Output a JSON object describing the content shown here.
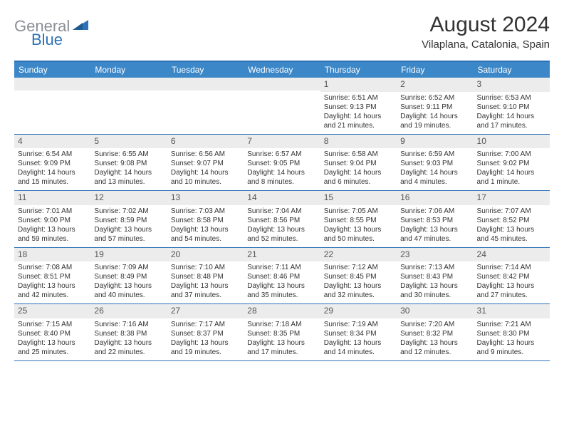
{
  "logo": {
    "part1": "General",
    "part2": "Blue"
  },
  "title": "August 2024",
  "subtitle": "Vilaplana, Catalonia, Spain",
  "colors": {
    "header_bar": "#3c87c7",
    "rule": "#2d72b8",
    "daynum_bg": "#ececec",
    "logo_gray": "#8a8f94",
    "logo_blue": "#2d72b8",
    "text": "#333333",
    "bg": "#ffffff"
  },
  "dow": [
    "Sunday",
    "Monday",
    "Tuesday",
    "Wednesday",
    "Thursday",
    "Friday",
    "Saturday"
  ],
  "weeks": [
    [
      {
        "n": "",
        "sr": "",
        "ss": "",
        "dl": ""
      },
      {
        "n": "",
        "sr": "",
        "ss": "",
        "dl": ""
      },
      {
        "n": "",
        "sr": "",
        "ss": "",
        "dl": ""
      },
      {
        "n": "",
        "sr": "",
        "ss": "",
        "dl": ""
      },
      {
        "n": "1",
        "sr": "Sunrise: 6:51 AM",
        "ss": "Sunset: 9:13 PM",
        "dl": "Daylight: 14 hours and 21 minutes."
      },
      {
        "n": "2",
        "sr": "Sunrise: 6:52 AM",
        "ss": "Sunset: 9:11 PM",
        "dl": "Daylight: 14 hours and 19 minutes."
      },
      {
        "n": "3",
        "sr": "Sunrise: 6:53 AM",
        "ss": "Sunset: 9:10 PM",
        "dl": "Daylight: 14 hours and 17 minutes."
      }
    ],
    [
      {
        "n": "4",
        "sr": "Sunrise: 6:54 AM",
        "ss": "Sunset: 9:09 PM",
        "dl": "Daylight: 14 hours and 15 minutes."
      },
      {
        "n": "5",
        "sr": "Sunrise: 6:55 AM",
        "ss": "Sunset: 9:08 PM",
        "dl": "Daylight: 14 hours and 13 minutes."
      },
      {
        "n": "6",
        "sr": "Sunrise: 6:56 AM",
        "ss": "Sunset: 9:07 PM",
        "dl": "Daylight: 14 hours and 10 minutes."
      },
      {
        "n": "7",
        "sr": "Sunrise: 6:57 AM",
        "ss": "Sunset: 9:05 PM",
        "dl": "Daylight: 14 hours and 8 minutes."
      },
      {
        "n": "8",
        "sr": "Sunrise: 6:58 AM",
        "ss": "Sunset: 9:04 PM",
        "dl": "Daylight: 14 hours and 6 minutes."
      },
      {
        "n": "9",
        "sr": "Sunrise: 6:59 AM",
        "ss": "Sunset: 9:03 PM",
        "dl": "Daylight: 14 hours and 4 minutes."
      },
      {
        "n": "10",
        "sr": "Sunrise: 7:00 AM",
        "ss": "Sunset: 9:02 PM",
        "dl": "Daylight: 14 hours and 1 minute."
      }
    ],
    [
      {
        "n": "11",
        "sr": "Sunrise: 7:01 AM",
        "ss": "Sunset: 9:00 PM",
        "dl": "Daylight: 13 hours and 59 minutes."
      },
      {
        "n": "12",
        "sr": "Sunrise: 7:02 AM",
        "ss": "Sunset: 8:59 PM",
        "dl": "Daylight: 13 hours and 57 minutes."
      },
      {
        "n": "13",
        "sr": "Sunrise: 7:03 AM",
        "ss": "Sunset: 8:58 PM",
        "dl": "Daylight: 13 hours and 54 minutes."
      },
      {
        "n": "14",
        "sr": "Sunrise: 7:04 AM",
        "ss": "Sunset: 8:56 PM",
        "dl": "Daylight: 13 hours and 52 minutes."
      },
      {
        "n": "15",
        "sr": "Sunrise: 7:05 AM",
        "ss": "Sunset: 8:55 PM",
        "dl": "Daylight: 13 hours and 50 minutes."
      },
      {
        "n": "16",
        "sr": "Sunrise: 7:06 AM",
        "ss": "Sunset: 8:53 PM",
        "dl": "Daylight: 13 hours and 47 minutes."
      },
      {
        "n": "17",
        "sr": "Sunrise: 7:07 AM",
        "ss": "Sunset: 8:52 PM",
        "dl": "Daylight: 13 hours and 45 minutes."
      }
    ],
    [
      {
        "n": "18",
        "sr": "Sunrise: 7:08 AM",
        "ss": "Sunset: 8:51 PM",
        "dl": "Daylight: 13 hours and 42 minutes."
      },
      {
        "n": "19",
        "sr": "Sunrise: 7:09 AM",
        "ss": "Sunset: 8:49 PM",
        "dl": "Daylight: 13 hours and 40 minutes."
      },
      {
        "n": "20",
        "sr": "Sunrise: 7:10 AM",
        "ss": "Sunset: 8:48 PM",
        "dl": "Daylight: 13 hours and 37 minutes."
      },
      {
        "n": "21",
        "sr": "Sunrise: 7:11 AM",
        "ss": "Sunset: 8:46 PM",
        "dl": "Daylight: 13 hours and 35 minutes."
      },
      {
        "n": "22",
        "sr": "Sunrise: 7:12 AM",
        "ss": "Sunset: 8:45 PM",
        "dl": "Daylight: 13 hours and 32 minutes."
      },
      {
        "n": "23",
        "sr": "Sunrise: 7:13 AM",
        "ss": "Sunset: 8:43 PM",
        "dl": "Daylight: 13 hours and 30 minutes."
      },
      {
        "n": "24",
        "sr": "Sunrise: 7:14 AM",
        "ss": "Sunset: 8:42 PM",
        "dl": "Daylight: 13 hours and 27 minutes."
      }
    ],
    [
      {
        "n": "25",
        "sr": "Sunrise: 7:15 AM",
        "ss": "Sunset: 8:40 PM",
        "dl": "Daylight: 13 hours and 25 minutes."
      },
      {
        "n": "26",
        "sr": "Sunrise: 7:16 AM",
        "ss": "Sunset: 8:38 PM",
        "dl": "Daylight: 13 hours and 22 minutes."
      },
      {
        "n": "27",
        "sr": "Sunrise: 7:17 AM",
        "ss": "Sunset: 8:37 PM",
        "dl": "Daylight: 13 hours and 19 minutes."
      },
      {
        "n": "28",
        "sr": "Sunrise: 7:18 AM",
        "ss": "Sunset: 8:35 PM",
        "dl": "Daylight: 13 hours and 17 minutes."
      },
      {
        "n": "29",
        "sr": "Sunrise: 7:19 AM",
        "ss": "Sunset: 8:34 PM",
        "dl": "Daylight: 13 hours and 14 minutes."
      },
      {
        "n": "30",
        "sr": "Sunrise: 7:20 AM",
        "ss": "Sunset: 8:32 PM",
        "dl": "Daylight: 13 hours and 12 minutes."
      },
      {
        "n": "31",
        "sr": "Sunrise: 7:21 AM",
        "ss": "Sunset: 8:30 PM",
        "dl": "Daylight: 13 hours and 9 minutes."
      }
    ]
  ]
}
